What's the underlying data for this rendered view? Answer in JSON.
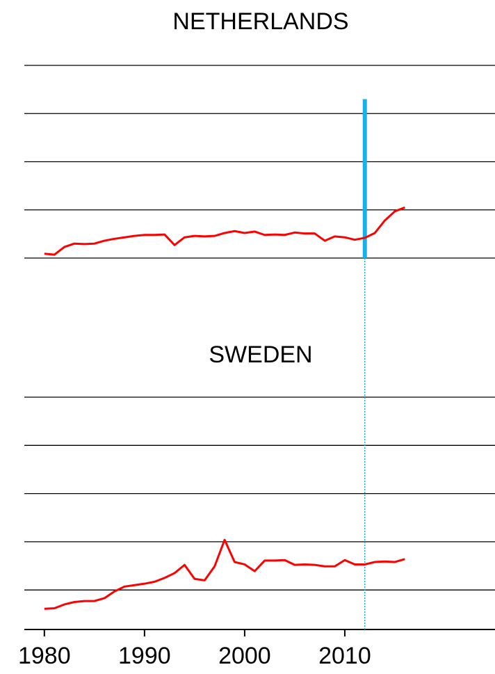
{
  "chart_data": [
    {
      "type": "line",
      "title": "NETHERLANDS",
      "x": [
        1980,
        1981,
        1982,
        1983,
        1984,
        1985,
        1986,
        1987,
        1988,
        1989,
        1990,
        1991,
        1992,
        1993,
        1994,
        1995,
        1996,
        1997,
        1998,
        1999,
        2000,
        2001,
        2002,
        2003,
        2004,
        2005,
        2006,
        2007,
        2008,
        2009,
        2010,
        2011,
        2012,
        2013,
        2014,
        2015,
        2016
      ],
      "values": [
        0.09,
        0.07,
        0.23,
        0.3,
        0.29,
        0.3,
        0.36,
        0.4,
        0.43,
        0.46,
        0.48,
        0.48,
        0.49,
        0.27,
        0.43,
        0.46,
        0.45,
        0.46,
        0.52,
        0.56,
        0.52,
        0.55,
        0.48,
        0.49,
        0.48,
        0.53,
        0.51,
        0.51,
        0.36,
        0.45,
        0.43,
        0.38,
        0.42,
        0.52,
        0.78,
        0.97,
        1.05
      ],
      "color": "#ff0000",
      "xlim": [
        1978,
        2025
      ],
      "ylim": [
        0,
        4
      ],
      "yticks": [
        0,
        1,
        2,
        3,
        4
      ],
      "grid": true,
      "vline_x": 2012,
      "vline_top": 3.3,
      "vline_color": "#1ab0e8",
      "vline_style": "solid"
    },
    {
      "type": "line",
      "title": "SWEDEN",
      "x": [
        1980,
        1981,
        1982,
        1983,
        1984,
        1985,
        1986,
        1987,
        1988,
        1989,
        1990,
        1991,
        1992,
        1993,
        1994,
        1995,
        1996,
        1997,
        1998,
        1999,
        2000,
        2001,
        2002,
        2003,
        2004,
        2005,
        2006,
        2007,
        2008,
        2009,
        2010,
        2011,
        2012,
        2013,
        2014,
        2015,
        2016
      ],
      "values": [
        -0.39,
        -0.38,
        -0.3,
        -0.25,
        -0.23,
        -0.23,
        -0.17,
        -0.03,
        0.07,
        0.1,
        0.13,
        0.17,
        0.25,
        0.35,
        0.52,
        0.23,
        0.2,
        0.49,
        1.04,
        0.58,
        0.53,
        0.39,
        0.61,
        0.61,
        0.62,
        0.52,
        0.53,
        0.52,
        0.49,
        0.49,
        0.62,
        0.53,
        0.53,
        0.58,
        0.59,
        0.58,
        0.64
      ],
      "color": "#ff0000",
      "xlim": [
        1978,
        2025
      ],
      "xticks": [
        1980,
        1990,
        2000,
        2010
      ],
      "ylim": [
        -0.82,
        4
      ],
      "yticks": [
        0,
        1,
        2,
        3,
        4
      ],
      "grid": true,
      "vline_x": 2012,
      "vline_color": "#1ab0e8",
      "vline_style": "dotted"
    }
  ]
}
